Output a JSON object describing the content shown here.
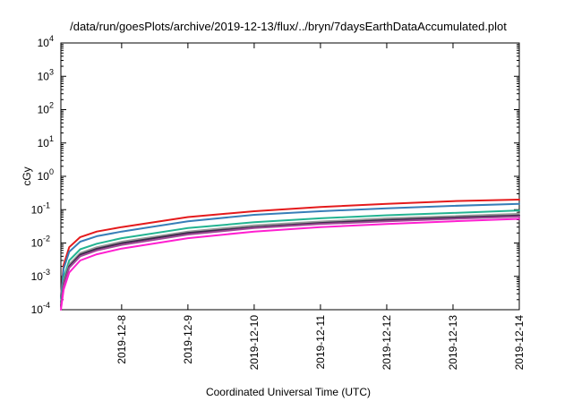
{
  "chart_data": {
    "type": "line",
    "title": "/data/run/goesPlots/archive/2019-12-13/flux/../bryn/7daysEarthDataAccumulated.plot",
    "xlabel": "Coordinated Universal Time (UTC)",
    "ylabel": "cGy",
    "y_scale": "log",
    "ylim": [
      0.0001,
      10000
    ],
    "y_ticks": [
      {
        "base": "10",
        "exp": "-4",
        "value": 0.0001
      },
      {
        "base": "10",
        "exp": "-3",
        "value": 0.001
      },
      {
        "base": "10",
        "exp": "-2",
        "value": 0.01
      },
      {
        "base": "10",
        "exp": "-1",
        "value": 0.1
      },
      {
        "base": "10",
        "exp": "0",
        "value": 1
      },
      {
        "base": "10",
        "exp": "1",
        "value": 10
      },
      {
        "base": "10",
        "exp": "2",
        "value": 100
      },
      {
        "base": "10",
        "exp": "3",
        "value": 1000
      },
      {
        "base": "10",
        "exp": "4",
        "value": 10000
      }
    ],
    "xlim": [
      "2019-12-07T02:00",
      "2019-12-14T00:00"
    ],
    "x_ticks": [
      "2019-12-8",
      "2019-12-9",
      "2019-12-10",
      "2019-12-11",
      "2019-12-12",
      "2019-12-13",
      "2019-12-14"
    ],
    "x": [
      "2019-12-07T02:00",
      "2019-12-07T03:00",
      "2019-12-07T05:00",
      "2019-12-07T09:00",
      "2019-12-07T15:00",
      "2019-12-08T00:00",
      "2019-12-09T00:00",
      "2019-12-10T00:00",
      "2019-12-11T00:00",
      "2019-12-12T00:00",
      "2019-12-13T00:00",
      "2019-12-14T00:00"
    ],
    "series": [
      {
        "color": "#e41a1c",
        "values": [
          0.00025,
          0.0022,
          0.0075,
          0.015,
          0.022,
          0.03,
          0.06,
          0.09,
          0.12,
          0.15,
          0.18,
          0.2
        ]
      },
      {
        "color": "#377eb8",
        "values": [
          0.00022,
          0.0017,
          0.0055,
          0.011,
          0.016,
          0.022,
          0.045,
          0.07,
          0.09,
          0.11,
          0.13,
          0.15
        ]
      },
      {
        "color": "#23b491",
        "values": [
          0.00017,
          0.0009,
          0.003,
          0.0065,
          0.0095,
          0.014,
          0.028,
          0.042,
          0.055,
          0.068,
          0.08,
          0.095
        ]
      },
      {
        "color": "#9a9a9a",
        "values": [
          0.00014,
          0.0007,
          0.0023,
          0.005,
          0.0075,
          0.011,
          0.022,
          0.034,
          0.044,
          0.055,
          0.064,
          0.075
        ]
      },
      {
        "color": "#3b2a4a",
        "values": [
          0.00013,
          0.0006,
          0.002,
          0.0045,
          0.0067,
          0.0098,
          0.02,
          0.03,
          0.04,
          0.049,
          0.058,
          0.067
        ]
      },
      {
        "color": "#a04a96",
        "values": [
          0.00012,
          0.00055,
          0.0018,
          0.004,
          0.006,
          0.0088,
          0.018,
          0.028,
          0.037,
          0.045,
          0.053,
          0.062
        ]
      },
      {
        "color": "#ff1fd0",
        "values": [
          0.0001,
          0.0004,
          0.0013,
          0.003,
          0.0046,
          0.0068,
          0.014,
          0.022,
          0.03,
          0.037,
          0.045,
          0.053
        ]
      }
    ]
  }
}
